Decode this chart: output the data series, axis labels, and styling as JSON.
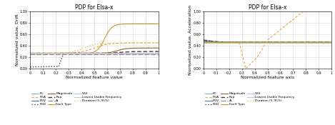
{
  "title": "PDP for Elsa-x",
  "left_ylabel": "Normalized value, Drift",
  "right_ylabel": "Normalized value, Acceleration",
  "xlabel_left": "Normalized feature value",
  "xlabel_right": "Normalized feature axis",
  "lines": [
    {
      "label": "FC",
      "color": "#6CB4D8",
      "ls": "-",
      "lw": 0.8,
      "dashes": null
    },
    {
      "label": "PGA",
      "color": "#E8A838",
      "ls": "--",
      "lw": 0.8,
      "dashes": [
        3,
        2
      ]
    },
    {
      "label": "PGV",
      "color": "#4472C4",
      "ls": "-",
      "lw": 0.8,
      "dashes": null
    },
    {
      "label": "PGD",
      "color": "#404040",
      "ls": ":",
      "lw": 1.0,
      "dashes": null
    },
    {
      "label": "Magnitude",
      "color": "#8B6914",
      "ls": "-",
      "lw": 0.8,
      "dashes": null
    },
    {
      "label": "Rup",
      "color": "#404040",
      "ls": "--",
      "lw": 1.0,
      "dashes": [
        4,
        2
      ]
    },
    {
      "label": "Ai",
      "color": "#888888",
      "ls": "--",
      "lw": 0.8,
      "dashes": [
        6,
        2
      ]
    },
    {
      "label": "Fault Type",
      "color": "#C49A28",
      "ls": "-",
      "lw": 0.8,
      "dashes": null
    },
    {
      "label": "VS0",
      "color": "#A8CBE8",
      "ls": "-",
      "lw": 0.8,
      "dashes": null
    },
    {
      "label": "Lowest Usable Frequency",
      "color": "#E8B8B8",
      "ls": "-",
      "lw": 0.8,
      "dashes": null
    },
    {
      "label": "Duration (5-95%)",
      "color": "#C8D060",
      "ls": ":",
      "lw": 1.0,
      "dashes": null
    }
  ]
}
